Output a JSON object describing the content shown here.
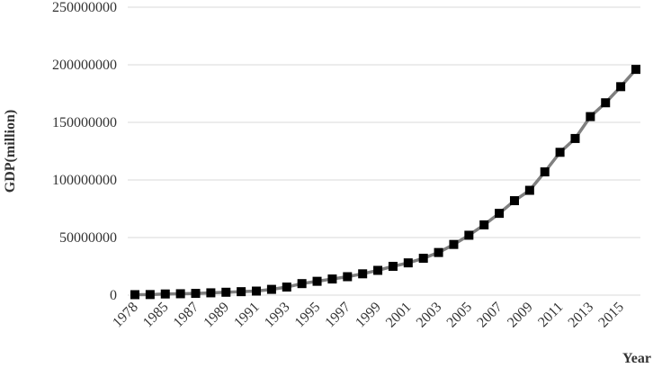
{
  "chart_data": {
    "type": "line",
    "y_label": "GDP(million)",
    "x_label": "Year",
    "categories": [
      "1978",
      null,
      "1985",
      null,
      "1987",
      null,
      "1989",
      null,
      "1991",
      null,
      "1993",
      null,
      "1995",
      null,
      "1997",
      null,
      "1999",
      null,
      "2001",
      null,
      "2003",
      null,
      "2005",
      null,
      "2007",
      null,
      "2009",
      null,
      "2011",
      null,
      "2013",
      null,
      "2015",
      null
    ],
    "series": [
      {
        "color": "#808080",
        "marker_color": "#000000",
        "values": [
          400000,
          500000,
          1000000,
          1200000,
          1500000,
          2000000,
          2500000,
          3000000,
          3500000,
          5000000,
          7000000,
          10000000,
          12000000,
          14000000,
          16000000,
          18500000,
          21500000,
          25000000,
          28000000,
          32000000,
          37000000,
          44000000,
          52000000,
          61000000,
          71000000,
          82000000,
          91000000,
          107000000,
          124000000,
          136000000,
          155000000,
          167000000,
          181000000,
          196000000
        ]
      }
    ],
    "ylim": [
      0,
      250000000
    ],
    "yticks": [
      0,
      50000000,
      100000000,
      150000000,
      200000000,
      250000000
    ],
    "grid": true
  }
}
